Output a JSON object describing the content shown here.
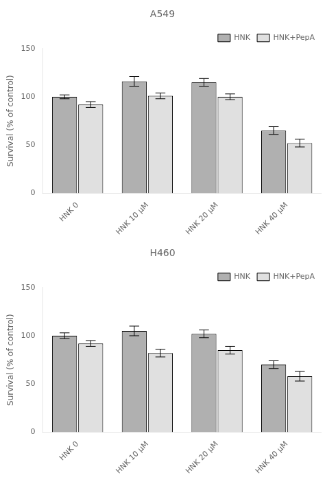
{
  "chart_data": [
    {
      "type": "bar",
      "title": "A549",
      "categories": [
        "HNK 0",
        "HNK 10 μM",
        "HNK 20 μM",
        "HNK 40 μM"
      ],
      "series": [
        {
          "name": "HNK",
          "color": "#b0b0b0",
          "values": [
            100.0,
            116.0,
            115.0,
            65.0
          ],
          "errors": [
            2.0,
            5.0,
            4.0,
            4.0
          ]
        },
        {
          "name": "HNK+PepA",
          "color": "#e0e0e0",
          "values": [
            92.0,
            101.0,
            100.0,
            52.0
          ],
          "errors": [
            3.0,
            3.0,
            3.0,
            4.0
          ]
        }
      ],
      "ylabel": "Survival (% of control)",
      "ylim": [
        0,
        150
      ],
      "yticks": [
        0,
        50,
        100,
        150
      ],
      "grid": false,
      "legend": "upper right"
    },
    {
      "type": "bar",
      "title": "H460",
      "categories": [
        "HNK 0",
        "HNK 10 μM",
        "HNK 20 μM",
        "HNK 40 μM"
      ],
      "series": [
        {
          "name": "HNK",
          "color": "#b0b0b0",
          "values": [
            100.0,
            105.0,
            102.0,
            70.0
          ],
          "errors": [
            3.0,
            5.0,
            4.0,
            4.0
          ]
        },
        {
          "name": "HNK+PepA",
          "color": "#e0e0e0",
          "values": [
            92.0,
            82.0,
            85.0,
            58.0
          ],
          "errors": [
            3.0,
            4.0,
            4.0,
            5.0
          ]
        }
      ],
      "ylabel": "Survival (% of control)",
      "ylim": [
        0,
        150
      ],
      "yticks": [
        0,
        50,
        100,
        150
      ],
      "grid": false,
      "legend": "upper right"
    }
  ]
}
